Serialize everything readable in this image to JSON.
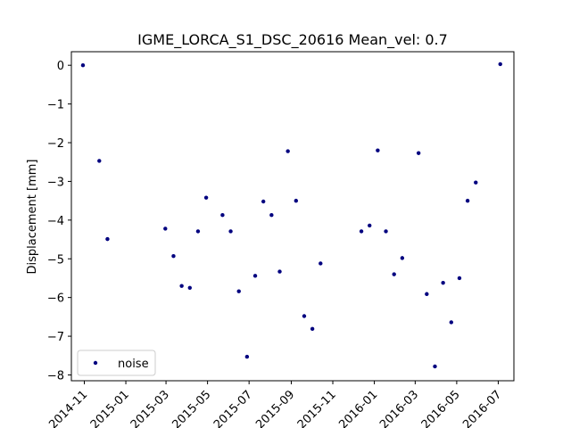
{
  "chart_data": {
    "type": "scatter",
    "title": "IGME_LORCA_S1_DSC_20616    Mean_vel: 0.7",
    "xlabel": "",
    "ylabel": "Displacement [mm]",
    "x_axis_type": "date",
    "xlim": [
      "2014-10-13",
      "2016-07-24"
    ],
    "ylim": [
      -8.15,
      0.35
    ],
    "x_ticks": [
      "2014-11-01",
      "2015-01-01",
      "2015-03-01",
      "2015-05-01",
      "2015-07-01",
      "2015-09-01",
      "2015-11-01",
      "2016-01-01",
      "2016-03-01",
      "2016-05-01",
      "2016-07-01"
    ],
    "x_tick_labels": [
      "2014-11",
      "2015-01",
      "2015-03",
      "2015-05",
      "2015-07",
      "2015-09",
      "2015-11",
      "2016-01",
      "2016-03",
      "2016-05",
      "2016-07"
    ],
    "y_ticks": [
      0,
      -1,
      -2,
      -3,
      -4,
      -5,
      -6,
      -7,
      -8
    ],
    "y_tick_labels": [
      "0",
      "−1",
      "−2",
      "−3",
      "−4",
      "−5",
      "−6",
      "−7",
      "−8"
    ],
    "grid": false,
    "legend": {
      "position": "lower-left",
      "entries": [
        "noise"
      ]
    },
    "colors": {
      "series": "#00007f"
    },
    "series": [
      {
        "name": "noise",
        "points": [
          {
            "x": "2014-10-30",
            "y": 0.0
          },
          {
            "x": "2014-11-23",
            "y": -2.47
          },
          {
            "x": "2014-12-05",
            "y": -4.49
          },
          {
            "x": "2015-02-28",
            "y": -4.22
          },
          {
            "x": "2015-03-12",
            "y": -4.93
          },
          {
            "x": "2015-03-24",
            "y": -5.7
          },
          {
            "x": "2015-04-05",
            "y": -5.75
          },
          {
            "x": "2015-04-17",
            "y": -4.29
          },
          {
            "x": "2015-04-29",
            "y": -3.42
          },
          {
            "x": "2015-05-23",
            "y": -3.87
          },
          {
            "x": "2015-06-04",
            "y": -4.29
          },
          {
            "x": "2015-06-16",
            "y": -5.84
          },
          {
            "x": "2015-06-28",
            "y": -7.53
          },
          {
            "x": "2015-07-10",
            "y": -5.44
          },
          {
            "x": "2015-07-22",
            "y": -3.52
          },
          {
            "x": "2015-08-03",
            "y": -3.87
          },
          {
            "x": "2015-08-15",
            "y": -5.33
          },
          {
            "x": "2015-08-27",
            "y": -2.22
          },
          {
            "x": "2015-09-08",
            "y": -3.5
          },
          {
            "x": "2015-09-20",
            "y": -6.48
          },
          {
            "x": "2015-10-02",
            "y": -6.81
          },
          {
            "x": "2015-10-14",
            "y": -5.12
          },
          {
            "x": "2015-12-13",
            "y": -4.29
          },
          {
            "x": "2015-12-25",
            "y": -4.14
          },
          {
            "x": "2016-01-06",
            "y": -2.2
          },
          {
            "x": "2016-01-18",
            "y": -4.29
          },
          {
            "x": "2016-01-30",
            "y": -5.4
          },
          {
            "x": "2016-02-11",
            "y": -4.98
          },
          {
            "x": "2016-03-06",
            "y": -2.27
          },
          {
            "x": "2016-03-18",
            "y": -5.91
          },
          {
            "x": "2016-03-30",
            "y": -7.78
          },
          {
            "x": "2016-04-11",
            "y": -5.62
          },
          {
            "x": "2016-04-23",
            "y": -6.64
          },
          {
            "x": "2016-05-05",
            "y": -5.5
          },
          {
            "x": "2016-05-17",
            "y": -3.5
          },
          {
            "x": "2016-05-29",
            "y": -3.03
          },
          {
            "x": "2016-07-04",
            "y": 0.03
          }
        ]
      }
    ]
  }
}
